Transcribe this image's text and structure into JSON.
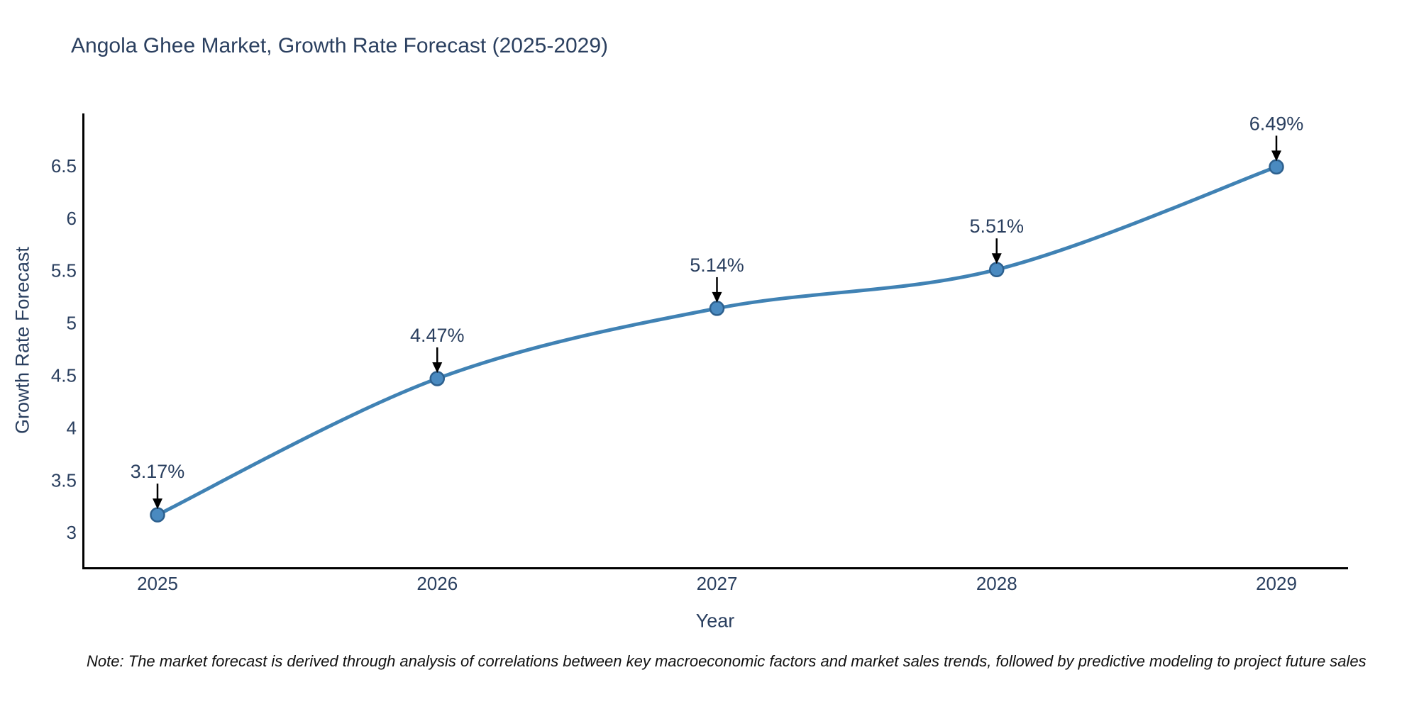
{
  "title": "Angola Ghee Market, Growth Rate Forecast (2025-2029)",
  "note": "Note: The market forecast is derived through analysis of correlations between key macroeconomic factors and market sales trends, followed by predictive modeling to project future sales",
  "chart_data": {
    "type": "line",
    "title": "Angola Ghee Market, Growth Rate Forecast (2025-2029)",
    "xlabel": "Year",
    "ylabel": "Growth Rate Forecast",
    "x": [
      2025,
      2026,
      2027,
      2028,
      2029
    ],
    "values": [
      3.17,
      4.47,
      5.14,
      5.51,
      6.49
    ],
    "point_labels": [
      "3.17%",
      "4.47%",
      "5.14%",
      "5.51%",
      "6.49%"
    ],
    "yticks": [
      3,
      3.5,
      4,
      4.5,
      5,
      5.5,
      6,
      6.5
    ],
    "ylim": [
      2.66,
      7.0
    ],
    "grid": false,
    "legend": null,
    "colors": {
      "line": "#4082b4",
      "marker_fill": "#4a8ac0",
      "marker_edge": "#2d608e",
      "axis": "#000000",
      "text": "#2a3f5f",
      "annotation_arrow": "#000000"
    }
  }
}
